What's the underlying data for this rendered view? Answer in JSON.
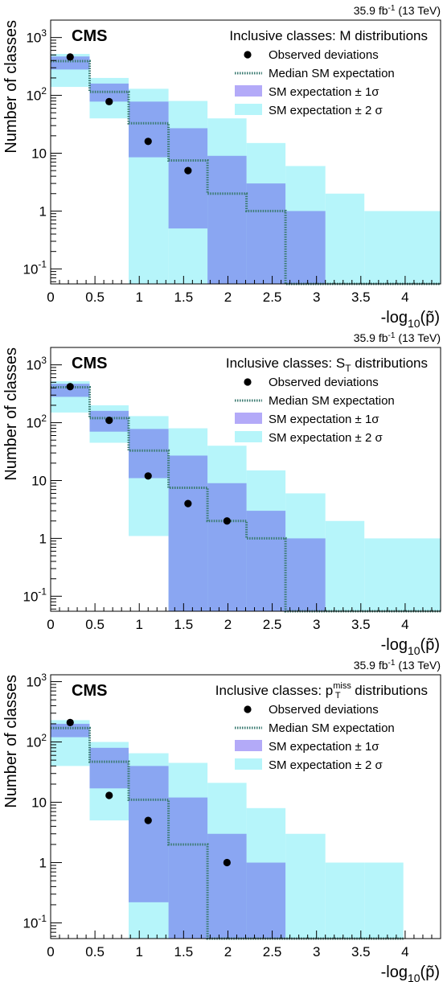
{
  "chart_data": [
    {
      "type": "bar",
      "lumi_label": "35.9 fb-1 (13 TeV)",
      "experiment": "CMS",
      "title": "Inclusive classes: M distributions",
      "xlabel": "-log10(p~)",
      "ylabel": "Number of classes",
      "xlim": [
        0,
        4.4
      ],
      "ylim": [
        0.055,
        2000
      ],
      "yscale": "log",
      "legend_position": "top-right",
      "x_ticks": [
        "0",
        "0.5",
        "1",
        "1.5",
        "2",
        "2.5",
        "3",
        "3.5",
        "4"
      ],
      "y_ticks": [
        "10-1",
        "1",
        "10",
        "102",
        "103"
      ],
      "bin_edges": [
        0,
        0.44,
        0.88,
        1.33,
        1.77,
        2.21,
        2.65,
        3.1,
        3.54,
        4.4
      ],
      "median": [
        390,
        115,
        33,
        7.5,
        2,
        1,
        0,
        0,
        0
      ],
      "band_1sigma": [
        [
          280,
          470
        ],
        [
          78,
          160
        ],
        [
          8.5,
          78
        ],
        [
          0.5,
          27
        ],
        [
          0.055,
          9
        ],
        [
          0.055,
          3
        ],
        [
          0.055,
          1
        ],
        null,
        null
      ],
      "band_2sigma": [
        [
          140,
          520
        ],
        [
          40,
          200
        ],
        [
          0.055,
          130
        ],
        [
          0.055,
          80
        ],
        [
          0.055,
          40
        ],
        [
          0.055,
          15
        ],
        [
          0.055,
          6
        ],
        [
          0.055,
          2
        ],
        [
          0.055,
          1
        ]
      ],
      "observed_x": [
        0.22,
        0.66,
        1.1,
        1.55
      ],
      "observed_y": [
        460,
        78,
        16,
        5
      ],
      "legend": {
        "observed": "Observed deviations",
        "median": "Median SM expectation",
        "band1": "SM expectation ± 1σ",
        "band2": "SM expectation ± 2 σ"
      },
      "colors": {
        "band1": "#8aa6f2",
        "band2": "#b6f5fa",
        "median": "#3a7a70",
        "points": "#000000"
      }
    },
    {
      "type": "bar",
      "lumi_label": "35.9 fb-1 (13 TeV)",
      "experiment": "CMS",
      "title": "Inclusive classes: ST distributions",
      "xlabel": "-log10(p~)",
      "ylabel": "Number of classes",
      "xlim": [
        0,
        4.4
      ],
      "ylim": [
        0.055,
        2000
      ],
      "yscale": "log",
      "legend_position": "top-right",
      "x_ticks": [
        "0",
        "0.5",
        "1",
        "1.5",
        "2",
        "2.5",
        "3",
        "3.5",
        "4"
      ],
      "y_ticks": [
        "10-1",
        "1",
        "10",
        "102",
        "103"
      ],
      "bin_edges": [
        0,
        0.44,
        0.88,
        1.33,
        1.77,
        2.21,
        2.65,
        3.1,
        3.54,
        4.4
      ],
      "median": [
        410,
        120,
        33,
        7.5,
        2,
        1,
        0,
        0,
        0
      ],
      "band_1sigma": [
        [
          280,
          470
        ],
        [
          70,
          160
        ],
        [
          11,
          78
        ],
        [
          0.055,
          27
        ],
        [
          0.055,
          9
        ],
        [
          0.055,
          3
        ],
        [
          0.055,
          1
        ],
        null,
        null
      ],
      "band_2sigma": [
        [
          150,
          520
        ],
        [
          45,
          200
        ],
        [
          1.1,
          130
        ],
        [
          0.055,
          80
        ],
        [
          0.055,
          40
        ],
        [
          0.055,
          15
        ],
        [
          0.055,
          6
        ],
        [
          0.055,
          2
        ],
        [
          0.055,
          1
        ]
      ],
      "observed_x": [
        0.22,
        0.66,
        1.1,
        1.55,
        1.99
      ],
      "observed_y": [
        420,
        110,
        12,
        4,
        2
      ],
      "legend": {
        "observed": "Observed deviations",
        "median": "Median SM expectation",
        "band1": "SM expectation ± 1σ",
        "band2": "SM expectation ± 2 σ"
      },
      "colors": {
        "band1": "#8aa6f2",
        "band2": "#b6f5fa",
        "median": "#3a7a70",
        "points": "#000000"
      }
    },
    {
      "type": "bar",
      "lumi_label": "35.9 fb-1 (13 TeV)",
      "experiment": "CMS",
      "title": "Inclusive classes: pTmiss distributions",
      "xlabel": "-log10(p~)",
      "ylabel": "Number of classes",
      "xlim": [
        0,
        4.4
      ],
      "ylim": [
        0.055,
        1300
      ],
      "yscale": "log",
      "legend_position": "top-right",
      "x_ticks": [
        "0",
        "0.5",
        "1",
        "1.5",
        "2",
        "2.5",
        "3",
        "3.5",
        "4"
      ],
      "y_ticks": [
        "10-1",
        "1",
        "10",
        "102",
        "103"
      ],
      "bin_edges": [
        0,
        0.44,
        0.88,
        1.33,
        1.77,
        2.21,
        2.65,
        3.1,
        3.54,
        3.98
      ],
      "median": [
        170,
        47,
        11,
        2,
        0,
        0,
        0,
        0,
        0
      ],
      "band_1sigma": [
        [
          120,
          200
        ],
        [
          17,
          80
        ],
        [
          0.22,
          40
        ],
        [
          0.055,
          12
        ],
        [
          0.055,
          3
        ],
        [
          0.055,
          1
        ],
        null,
        null,
        null
      ],
      "band_2sigma": [
        [
          40,
          230
        ],
        [
          5,
          100
        ],
        [
          0.055,
          65
        ],
        [
          0.055,
          45
        ],
        [
          0.055,
          21
        ],
        [
          0.055,
          8
        ],
        [
          0.055,
          3
        ],
        [
          0.055,
          1
        ],
        [
          0.055,
          1
        ]
      ],
      "observed_x": [
        0.22,
        0.66,
        1.1,
        1.99
      ],
      "observed_y": [
        210,
        13,
        5,
        1
      ],
      "legend": {
        "observed": "Observed deviations",
        "median": "Median SM expectation",
        "band1": "SM expectation ± 1σ",
        "band2": "SM expectation ± 2 σ"
      },
      "colors": {
        "band1": "#8aa6f2",
        "band2": "#b6f5fa",
        "median": "#3a7a70",
        "points": "#000000"
      }
    }
  ]
}
